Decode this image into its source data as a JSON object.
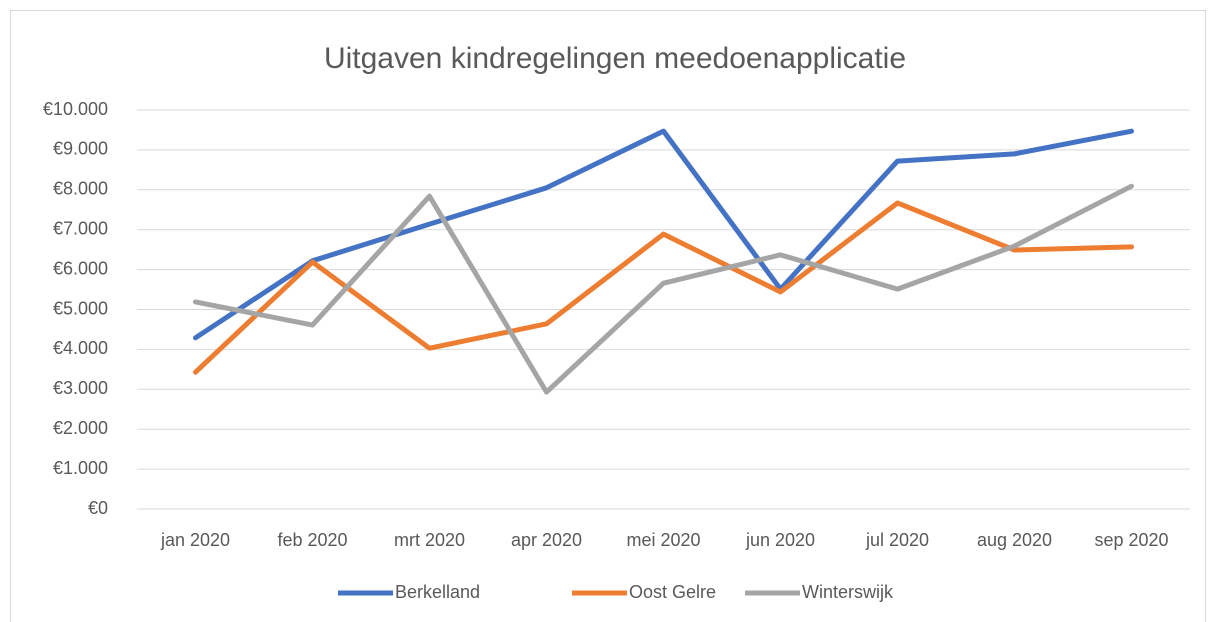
{
  "chart_data": {
    "type": "line",
    "title": "Uitgaven kindregelingen meedoenapplicatie",
    "categories": [
      "jan 2020",
      "feb 2020",
      "mrt 2020",
      "apr 2020",
      "mei 2020",
      "jun 2020",
      "jul 2020",
      "aug 2020",
      "sep 2020"
    ],
    "series": [
      {
        "name": "Berkelland",
        "color": "#4472c4",
        "values": [
          4290,
          6220,
          7140,
          8050,
          9470,
          5510,
          8720,
          8900,
          9470
        ]
      },
      {
        "name": "Oost Gelre",
        "color": "#ed7d31",
        "values": [
          3430,
          6190,
          4030,
          4640,
          6890,
          5440,
          7670,
          6490,
          6570
        ]
      },
      {
        "name": "Winterswijk",
        "color": "#a5a5a5",
        "values": [
          5190,
          4610,
          7840,
          2930,
          5660,
          6370,
          5510,
          6590,
          8090
        ]
      }
    ],
    "ylim": [
      0,
      10000
    ],
    "yticks": [
      {
        "value": 0,
        "label": "€0"
      },
      {
        "value": 1000,
        "label": "€1.000"
      },
      {
        "value": 2000,
        "label": "€2.000"
      },
      {
        "value": 3000,
        "label": "€3.000"
      },
      {
        "value": 4000,
        "label": "€4.000"
      },
      {
        "value": 5000,
        "label": "€5.000"
      },
      {
        "value": 6000,
        "label": "€6.000"
      },
      {
        "value": 7000,
        "label": "€7.000"
      },
      {
        "value": 8000,
        "label": "€8.000"
      },
      {
        "value": 9000,
        "label": "€9.000"
      },
      {
        "value": 10000,
        "label": "€10.000"
      }
    ],
    "grid": true,
    "legend": "bottom"
  }
}
